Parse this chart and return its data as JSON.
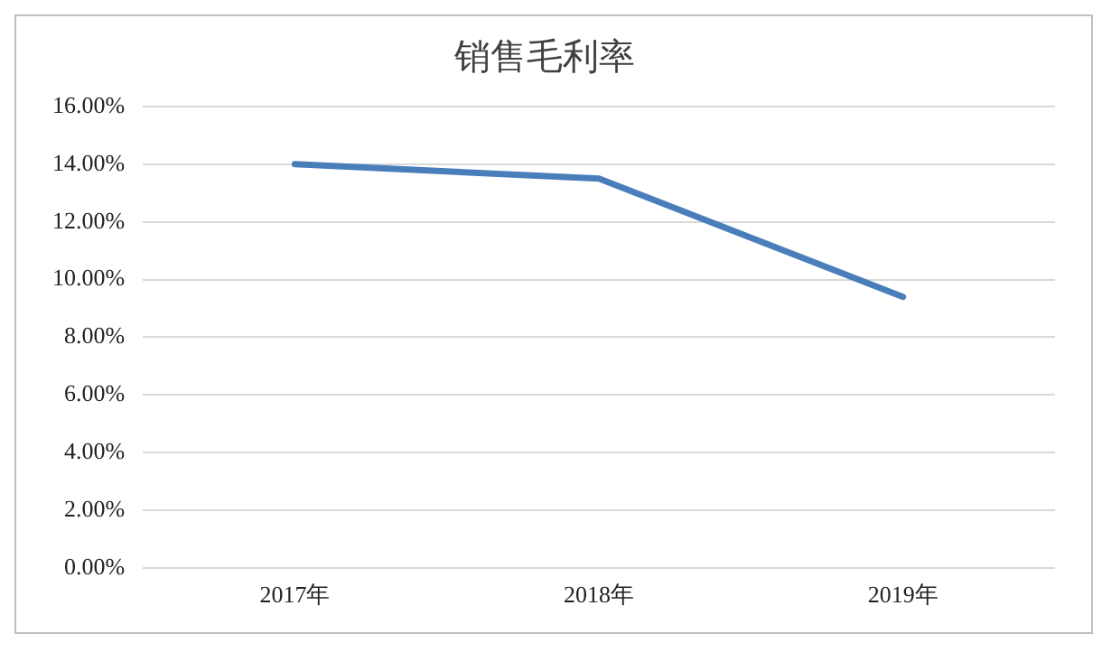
{
  "chart_data": {
    "type": "line",
    "title": "销售毛利率",
    "categories": [
      "2017年",
      "2018年",
      "2019年"
    ],
    "series": [
      {
        "color": "#4a7ebb",
        "values": [
          14.0,
          13.5,
          9.4
        ]
      }
    ],
    "ylim": [
      0,
      16
    ],
    "yticks": [
      {
        "value": 0,
        "label": "0.00%"
      },
      {
        "value": 2,
        "label": "2.00%"
      },
      {
        "value": 4,
        "label": "4.00%"
      },
      {
        "value": 6,
        "label": "6.00%"
      },
      {
        "value": 8,
        "label": "8.00%"
      },
      {
        "value": 10,
        "label": "10.00%"
      },
      {
        "value": 12,
        "label": "12.00%"
      },
      {
        "value": 14,
        "label": "14.00%"
      },
      {
        "value": 16,
        "label": "16.00%"
      }
    ],
    "grid": "y",
    "legend": false,
    "marker": "none",
    "line_style": "solid"
  }
}
